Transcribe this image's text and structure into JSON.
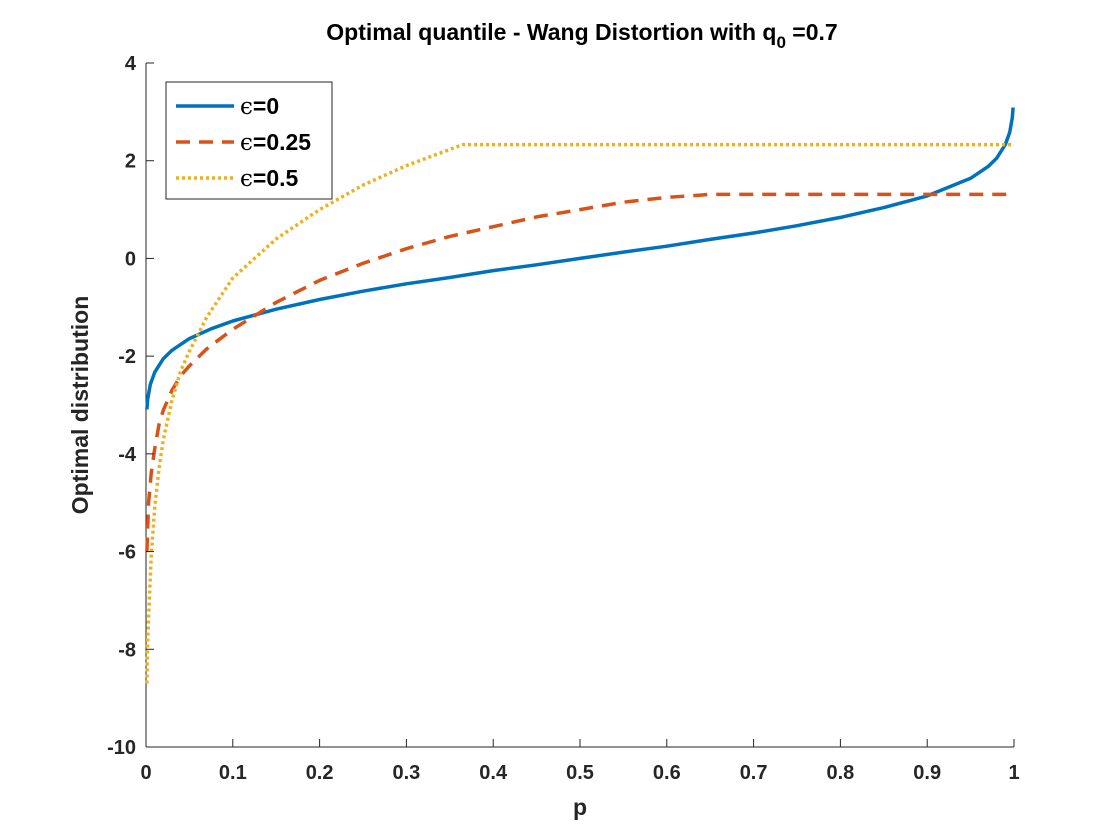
{
  "chart_data": {
    "type": "line",
    "title": {
      "main": "Optimal quantile - Wang Distortion with q",
      "subscript": "0",
      "suffix": " =0.7"
    },
    "xlabel": "p",
    "ylabel": "Optimal distribution",
    "xlim": [
      0,
      1
    ],
    "ylim": [
      -10,
      4
    ],
    "xticks": [
      0,
      0.1,
      0.2,
      0.3,
      0.4,
      0.5,
      0.6,
      0.7,
      0.8,
      0.9,
      1
    ],
    "xtick_labels": [
      "0",
      "0.1",
      "0.2",
      "0.3",
      "0.4",
      "0.5",
      "0.6",
      "0.7",
      "0.8",
      "0.9",
      "1"
    ],
    "yticks": [
      -10,
      -8,
      -6,
      -4,
      -2,
      0,
      2,
      4
    ],
    "ytick_labels": [
      "-10",
      "-8",
      "-6",
      "-4",
      "-2",
      "0",
      "2",
      "4"
    ],
    "grid": false,
    "legend_position": "top-left",
    "series": [
      {
        "name": "ϵ=0",
        "label_symbol": "ϵ",
        "label_value": "=0",
        "color": "#0072BD",
        "style": "solid",
        "x": [
          0.001,
          0.002,
          0.005,
          0.01,
          0.02,
          0.03,
          0.05,
          0.075,
          0.1,
          0.15,
          0.2,
          0.25,
          0.3,
          0.35,
          0.4,
          0.45,
          0.5,
          0.55,
          0.6,
          0.65,
          0.7,
          0.75,
          0.8,
          0.85,
          0.9,
          0.95,
          0.97,
          0.98,
          0.99,
          0.995,
          0.998,
          0.999
        ],
        "y": [
          -3.09,
          -2.88,
          -2.58,
          -2.33,
          -2.05,
          -1.88,
          -1.64,
          -1.44,
          -1.28,
          -1.04,
          -0.84,
          -0.67,
          -0.52,
          -0.39,
          -0.25,
          -0.13,
          0,
          0.13,
          0.25,
          0.39,
          0.52,
          0.67,
          0.84,
          1.04,
          1.28,
          1.64,
          1.88,
          2.05,
          2.33,
          2.58,
          2.88,
          3.09
        ]
      },
      {
        "name": "ϵ=0.25",
        "label_symbol": "ϵ",
        "label_value": "=0.25",
        "color": "#D95319",
        "style": "dashed",
        "x": [
          0.001,
          0.003,
          0.006,
          0.01,
          0.015,
          0.02,
          0.03,
          0.04,
          0.05,
          0.07,
          0.1,
          0.15,
          0.2,
          0.25,
          0.3,
          0.35,
          0.4,
          0.45,
          0.5,
          0.55,
          0.6,
          0.65,
          0.7,
          0.8,
          0.9,
          1.0
        ],
        "y": [
          -6.0,
          -5.0,
          -4.4,
          -3.9,
          -3.4,
          -3.1,
          -2.7,
          -2.4,
          -2.2,
          -1.85,
          -1.45,
          -0.9,
          -0.45,
          -0.1,
          0.2,
          0.45,
          0.65,
          0.85,
          1.0,
          1.15,
          1.25,
          1.31,
          1.31,
          1.31,
          1.31,
          1.31
        ]
      },
      {
        "name": "ϵ=0.5",
        "label_symbol": "ϵ",
        "label_value": "=0.5",
        "color": "#EDB120",
        "style": "dotted",
        "x": [
          0.001,
          0.002,
          0.004,
          0.006,
          0.01,
          0.015,
          0.02,
          0.03,
          0.04,
          0.05,
          0.07,
          0.1,
          0.15,
          0.2,
          0.25,
          0.3,
          0.365,
          0.4,
          0.5,
          0.6,
          0.7,
          0.8,
          0.9,
          1.0
        ],
        "y": [
          -8.7,
          -7.8,
          -6.9,
          -6.1,
          -5.1,
          -4.3,
          -3.7,
          -2.9,
          -2.3,
          -1.9,
          -1.2,
          -0.4,
          0.4,
          1.0,
          1.5,
          1.9,
          2.33,
          2.33,
          2.33,
          2.33,
          2.33,
          2.33,
          2.33,
          2.33
        ]
      }
    ]
  }
}
